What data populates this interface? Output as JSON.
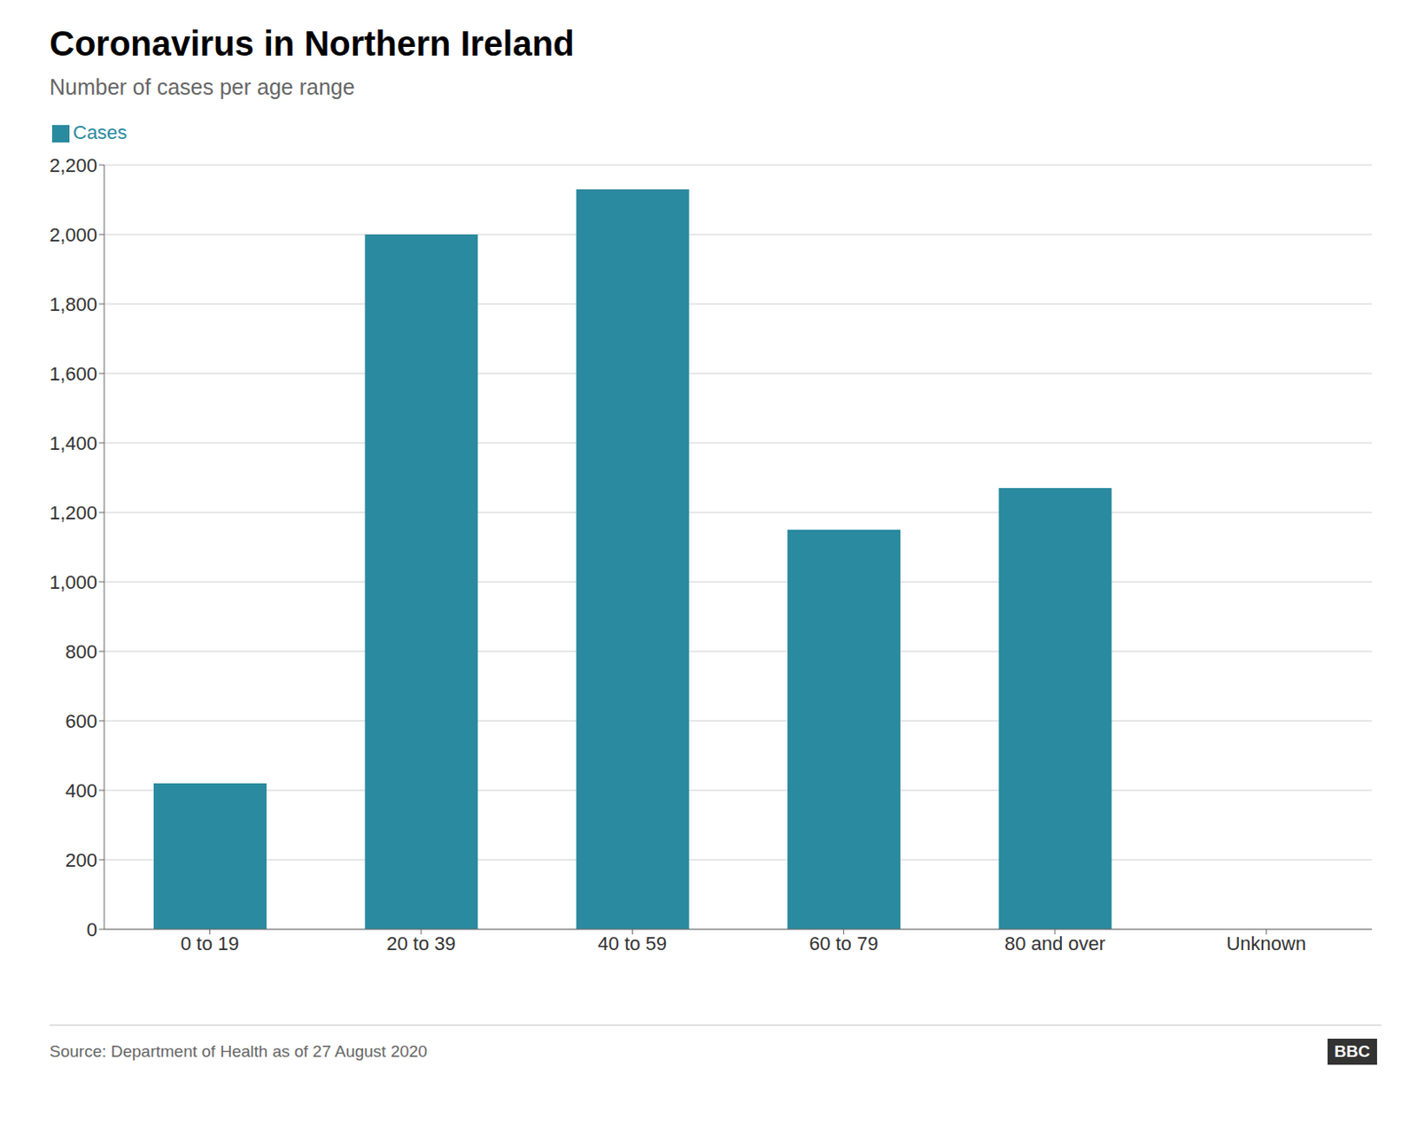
{
  "chart_data": {
    "type": "bar",
    "title": "Coronavirus in Northern Ireland",
    "subtitle": "Number of cases per age range",
    "categories": [
      "0 to 19",
      "20 to 39",
      "40 to 59",
      "60 to 79",
      "80 and over",
      "Unknown"
    ],
    "series": [
      {
        "name": "Cases",
        "color": "#2a8a9f",
        "values": [
          420,
          2000,
          2130,
          1150,
          1270,
          0
        ]
      }
    ],
    "ylim": [
      0,
      2200
    ],
    "yticks": [
      0,
      200,
      400,
      600,
      800,
      {
        "value": 1000,
        "label": "1,000"
      },
      {
        "value": 1200,
        "label": "1,200"
      },
      {
        "value": 1400,
        "label": "1,400"
      },
      {
        "value": 1600,
        "label": "1,600"
      },
      {
        "value": 1800,
        "label": "1,800"
      },
      {
        "value": 2000,
        "label": "2,000"
      },
      {
        "value": 2200,
        "label": "2,200"
      }
    ],
    "grid": true,
    "legend": "upper left",
    "annotations": [
      "Source: Department of Health as of 27 August 2020",
      "BBC"
    ]
  }
}
